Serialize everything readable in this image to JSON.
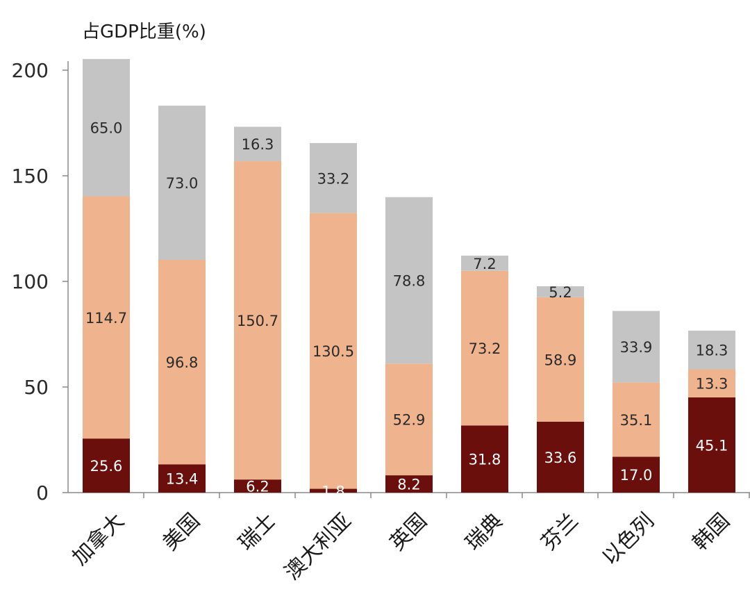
{
  "chart_data": {
    "type": "bar",
    "stacked": true,
    "ylabel": "占GDP比重(%)",
    "xlabel": "",
    "ylim": [
      0,
      200
    ],
    "yticks": [
      0,
      50,
      100,
      150,
      200
    ],
    "grid": false,
    "categories": [
      "加拿大",
      "美国",
      "瑞士",
      "澳大利亚",
      "英国",
      "瑞典",
      "芬兰",
      "以色列",
      "韩国"
    ],
    "series": [
      {
        "values": [
          25.6,
          13.4,
          6.2,
          1.8,
          8.2,
          31.8,
          33.6,
          17.0,
          45.1
        ],
        "color": "#6b0f0c",
        "label_color": "#ffffff"
      },
      {
        "values": [
          114.7,
          96.8,
          150.7,
          130.5,
          52.9,
          73.2,
          58.9,
          35.1,
          13.3
        ],
        "color": "#efb48e",
        "label_color": "#2a2a2a"
      },
      {
        "values": [
          65.0,
          73.0,
          16.3,
          33.2,
          78.8,
          7.2,
          5.2,
          33.9,
          18.3
        ],
        "color": "#c4c4c4",
        "label_color": "#2a2a2a"
      }
    ]
  }
}
